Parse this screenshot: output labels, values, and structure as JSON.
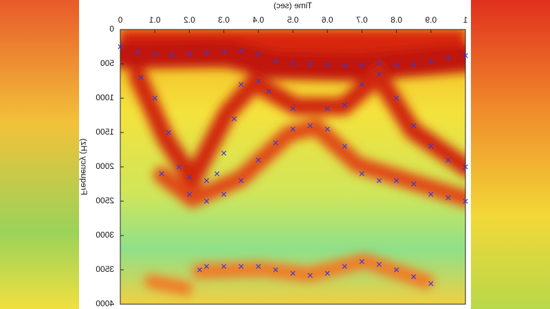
{
  "chart_data": {
    "type": "scatter",
    "x_label": "Time (sec)",
    "y_label": "Frequency (Hz)",
    "xlim": [
      0,
      1
    ],
    "ylim": [
      0,
      4000
    ],
    "xticks": [
      0,
      0.1,
      0.2,
      0.3,
      0.4,
      0.5,
      0.6,
      0.7,
      0.8,
      0.9,
      1
    ],
    "yticks": [
      0,
      500,
      1000,
      1500,
      2000,
      2500,
      3000,
      3500,
      4000
    ],
    "y_inverted": true,
    "mirrored_text": true,
    "series": [
      {
        "color": "#3a3ad0",
        "x": [
          0,
          0.05,
          0.1,
          0.15,
          0.2,
          0.25,
          0.3,
          0.35,
          0.4,
          0.45,
          0.5,
          0.55,
          0.6,
          0.65,
          0.7,
          0.75,
          0.8,
          0.85,
          0.9,
          0.95,
          1
        ],
        "values": [
          250,
          330,
          360,
          370,
          360,
          340,
          320,
          310,
          360,
          460,
          490,
          500,
          510,
          530,
          520,
          490,
          520,
          510,
          470,
          420,
          380
        ]
      },
      {
        "color": "#3a3ad0",
        "x": [
          0.06,
          0.1,
          0.14,
          0.17,
          0.2,
          0.25,
          0.28,
          0.3,
          0.33,
          0.35,
          0.4,
          0.43,
          0.5,
          0.6,
          0.65,
          0.7,
          0.75,
          0.8,
          0.85,
          0.9,
          0.95,
          1
        ],
        "values": [
          700,
          1000,
          1500,
          2000,
          2150,
          2200,
          2100,
          1800,
          1300,
          800,
          750,
          900,
          1150,
          1150,
          1100,
          800,
          650,
          1000,
          1400,
          1700,
          1900,
          2000
        ]
      },
      {
        "color": "#3a3ad0",
        "x": [
          0.12,
          0.2,
          0.25,
          0.3,
          0.35,
          0.4,
          0.45,
          0.5,
          0.55,
          0.6,
          0.65,
          0.7,
          0.75,
          0.8,
          0.85,
          0.9,
          0.95,
          1
        ],
        "values": [
          2100,
          2400,
          2500,
          2400,
          2200,
          1900,
          1650,
          1450,
          1400,
          1450,
          1700,
          2100,
          2200,
          2200,
          2250,
          2400,
          2450,
          2500
        ]
      },
      {
        "color": "#3a3ad0",
        "x": [
          0.23,
          0.25,
          0.3,
          0.35,
          0.4,
          0.45,
          0.5,
          0.55,
          0.6,
          0.65,
          0.7,
          0.75,
          0.8,
          0.85,
          0.9
        ],
        "values": [
          3500,
          3450,
          3450,
          3450,
          3450,
          3500,
          3550,
          3580,
          3550,
          3450,
          3380,
          3420,
          3500,
          3600,
          3700
        ]
      }
    ]
  }
}
